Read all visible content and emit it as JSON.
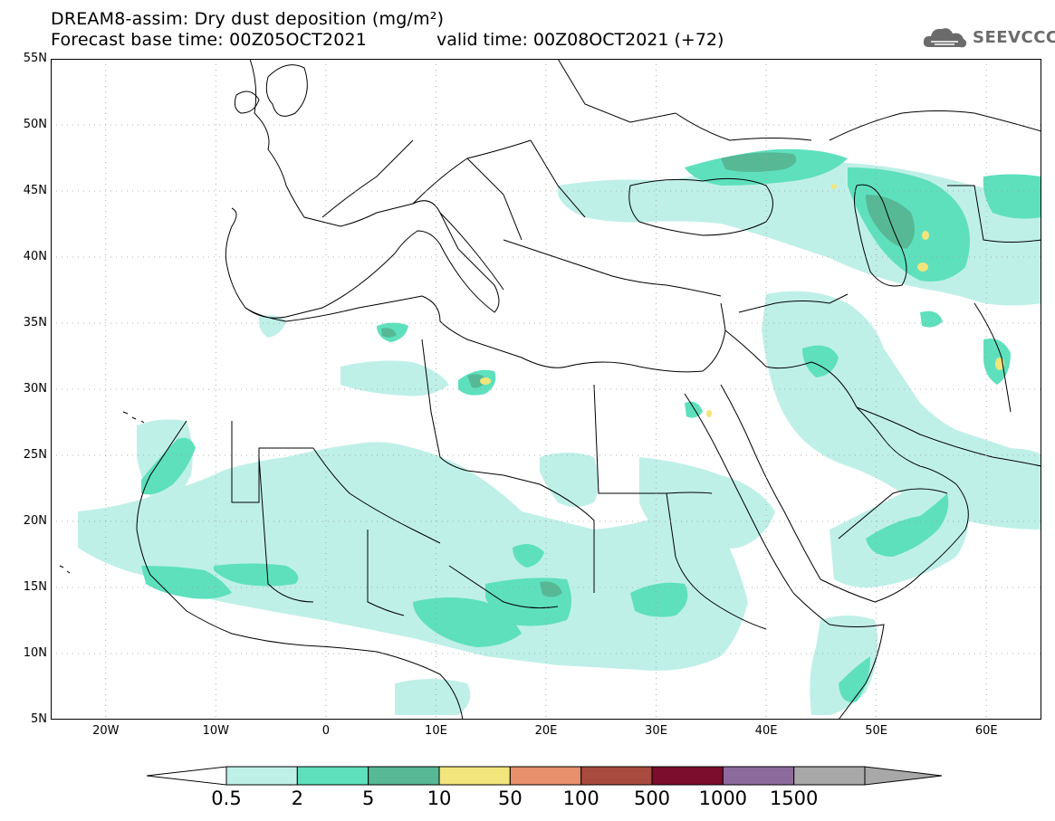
{
  "header": {
    "title": "DREAM8-assim: Dry dust deposition (mg/m²)",
    "base_time": "Forecast base time: 00Z05OCT2021",
    "valid_time": "valid time: 00Z08OCT2021 (+72)",
    "logo_text": "SEEVCCC",
    "logo_icon": "cloud-logo-icon"
  },
  "map": {
    "lon_range": [
      -25,
      65
    ],
    "lat_range": [
      5,
      55
    ],
    "lat_ticks": [
      "5N",
      "10N",
      "15N",
      "20N",
      "25N",
      "30N",
      "35N",
      "40N",
      "45N",
      "50N",
      "55N"
    ],
    "lat_values": [
      5,
      10,
      15,
      20,
      25,
      30,
      35,
      40,
      45,
      50,
      55
    ],
    "lon_ticks": [
      "20W",
      "10W",
      "0",
      "10E",
      "20E",
      "30E",
      "40E",
      "50E",
      "60E"
    ],
    "lon_values": [
      -20,
      -10,
      0,
      10,
      20,
      30,
      40,
      50,
      60
    ],
    "gridlines": "dotted"
  },
  "colorbar": {
    "labels": [
      "0.5",
      "2",
      "5",
      "10",
      "50",
      "100",
      "500",
      "1000",
      "1500"
    ],
    "colors": [
      "#bff0e8",
      "#5ee0bd",
      "#57b895",
      "#f2e57c",
      "#e88f6c",
      "#a84a3e",
      "#7d0d2c",
      "#8c6b9c",
      "#a8a8a8"
    ]
  }
}
